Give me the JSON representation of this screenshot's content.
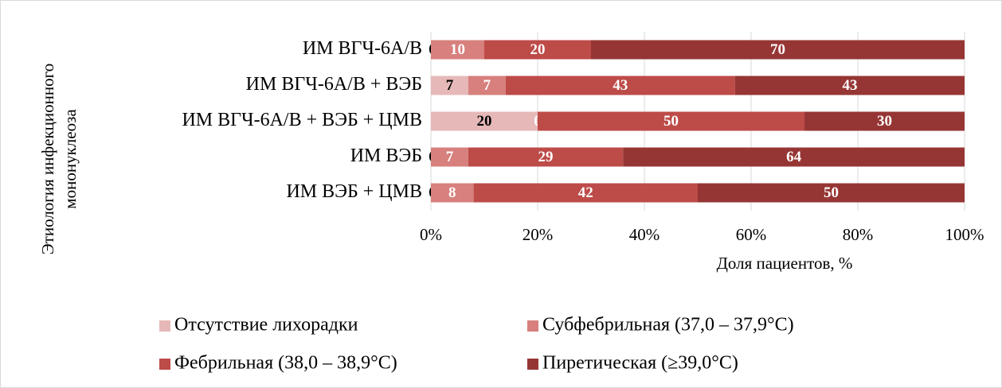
{
  "chart_data": {
    "type": "bar",
    "orientation": "horizontal",
    "stacked": true,
    "ylabel": [
      "Этиология инфекционного",
      "мононуклеоза"
    ],
    "xlabel": "Доля пациентов, %",
    "categories": [
      "ИМ ВГЧ-6А/В",
      "ИМ ВГЧ-6А/В + ВЭБ",
      "ИМ ВГЧ-6А/В + ВЭБ + ЦМВ",
      "ИМ ВЭБ",
      "ИМ ВЭБ + ЦМВ"
    ],
    "series": [
      {
        "name": "Отсутствие лихорадки",
        "color": "#e6b9b8",
        "values": [
          0,
          7,
          20,
          0,
          0
        ]
      },
      {
        "name": "Субфебрильная (37,0 – 37,9°C)",
        "color": "#d7807d",
        "values": [
          10,
          7,
          0,
          7,
          8
        ]
      },
      {
        "name": "Фебрильная (38,0 – 38,9°C)",
        "color": "#bd4b48",
        "values": [
          20,
          43,
          50,
          29,
          42
        ]
      },
      {
        "name": "Пиретическая (≥39,0°C)",
        "color": "#963634",
        "values": [
          70,
          43,
          30,
          64,
          50
        ]
      }
    ],
    "xlim": [
      0,
      100
    ],
    "xticks": [
      {
        "value": 0,
        "label": "0%"
      },
      {
        "value": 20,
        "label": "20%"
      },
      {
        "value": 40,
        "label": "40%"
      },
      {
        "value": 60,
        "label": "60%"
      },
      {
        "value": 80,
        "label": "80%"
      },
      {
        "value": 100,
        "label": "100%"
      }
    ],
    "grid": true,
    "legend": "bottom"
  }
}
